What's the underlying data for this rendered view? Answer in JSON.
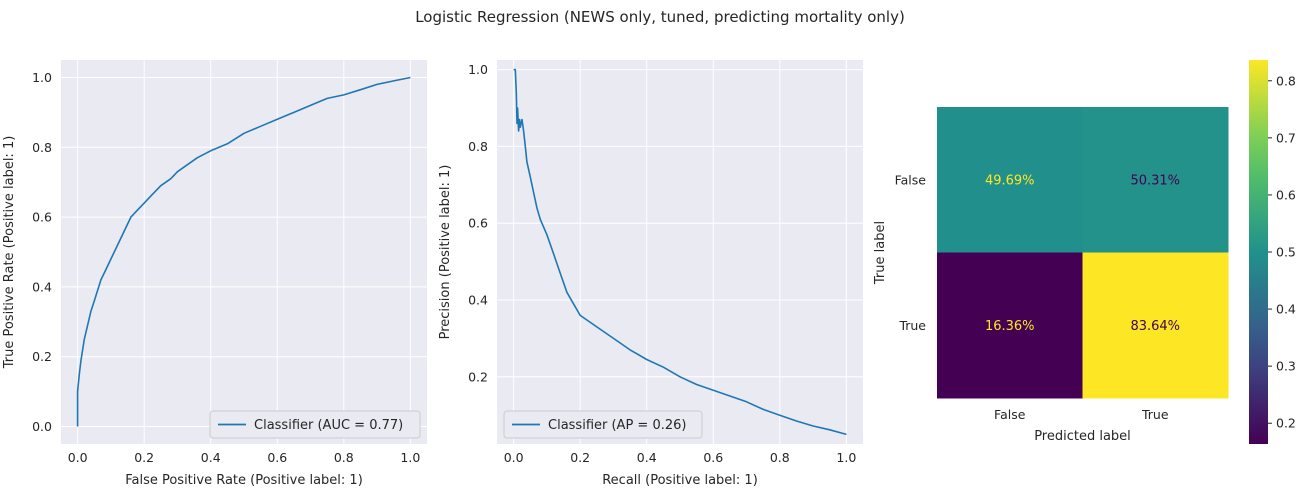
{
  "figure": {
    "suptitle": "Logistic Regression (NEWS only, tuned, predicting mortality only)"
  },
  "chart_data": [
    {
      "type": "line",
      "xlabel": "False Positive Rate (Positive label: 1)",
      "ylabel": "True Positive Rate (Positive label: 1)",
      "xlim": [
        -0.05,
        1.05
      ],
      "ylim": [
        -0.05,
        1.05
      ],
      "xticks": [
        "0.0",
        "0.2",
        "0.4",
        "0.6",
        "0.8",
        "1.0"
      ],
      "yticks": [
        "0.0",
        "0.2",
        "0.4",
        "0.6",
        "0.8",
        "1.0"
      ],
      "grid": true,
      "legend_position": "lower-right",
      "series": [
        {
          "name": "Classifier (AUC = 0.77)",
          "color": "#1f77b4",
          "x": [
            0,
            0,
            0.005,
            0.01,
            0.02,
            0.03,
            0.04,
            0.05,
            0.06,
            0.07,
            0.08,
            0.09,
            0.1,
            0.12,
            0.14,
            0.16,
            0.18,
            0.2,
            0.22,
            0.25,
            0.28,
            0.3,
            0.33,
            0.36,
            0.4,
            0.45,
            0.5,
            0.55,
            0.6,
            0.65,
            0.7,
            0.75,
            0.8,
            0.85,
            0.9,
            0.95,
            1.0
          ],
          "y": [
            0,
            0.1,
            0.15,
            0.19,
            0.25,
            0.29,
            0.33,
            0.36,
            0.39,
            0.42,
            0.44,
            0.46,
            0.48,
            0.52,
            0.56,
            0.6,
            0.62,
            0.64,
            0.66,
            0.69,
            0.71,
            0.73,
            0.75,
            0.77,
            0.79,
            0.81,
            0.84,
            0.86,
            0.88,
            0.9,
            0.92,
            0.94,
            0.95,
            0.965,
            0.98,
            0.99,
            1.0
          ]
        }
      ]
    },
    {
      "type": "line",
      "xlabel": "Recall (Positive label: 1)",
      "ylabel": "Precision (Positive label: 1)",
      "xlim": [
        -0.05,
        1.05
      ],
      "ylim": [
        0.025,
        1.025
      ],
      "xticks": [
        "0.0",
        "0.2",
        "0.4",
        "0.6",
        "0.8",
        "1.0"
      ],
      "yticks": [
        "0.2",
        "0.4",
        "0.6",
        "0.8",
        "1.0"
      ],
      "grid": true,
      "legend_position": "lower-left",
      "series": [
        {
          "name": "Classifier (AP = 0.26)",
          "color": "#1f77b4",
          "x": [
            0.0,
            0.005,
            0.008,
            0.01,
            0.012,
            0.015,
            0.018,
            0.02,
            0.025,
            0.03,
            0.035,
            0.04,
            0.05,
            0.06,
            0.07,
            0.08,
            0.1,
            0.12,
            0.14,
            0.16,
            0.18,
            0.2,
            0.25,
            0.3,
            0.35,
            0.4,
            0.45,
            0.5,
            0.55,
            0.6,
            0.65,
            0.7,
            0.75,
            0.8,
            0.85,
            0.9,
            0.95,
            1.0
          ],
          "y": [
            1.0,
            1.0,
            0.94,
            0.86,
            0.9,
            0.84,
            0.87,
            0.85,
            0.87,
            0.84,
            0.8,
            0.76,
            0.72,
            0.68,
            0.64,
            0.61,
            0.57,
            0.52,
            0.47,
            0.42,
            0.39,
            0.36,
            0.33,
            0.3,
            0.27,
            0.245,
            0.225,
            0.2,
            0.18,
            0.165,
            0.15,
            0.135,
            0.115,
            0.1,
            0.085,
            0.072,
            0.062,
            0.05
          ]
        }
      ]
    },
    {
      "type": "heatmap",
      "xlabel": "Predicted label",
      "ylabel": "True label",
      "xticks": [
        "False",
        "True"
      ],
      "yticks": [
        "False",
        "True"
      ],
      "values": [
        [
          0.4969,
          0.5031
        ],
        [
          0.1636,
          0.8364
        ]
      ],
      "labels": [
        [
          "49.69%",
          "50.31%"
        ],
        [
          "16.36%",
          "83.64%"
        ]
      ],
      "colormap": "viridis",
      "colorbar": {
        "range": [
          0.1636,
          0.8364
        ],
        "ticks": [
          "0.2",
          "0.3",
          "0.4",
          "0.5",
          "0.6",
          "0.7",
          "0.8"
        ]
      }
    }
  ]
}
